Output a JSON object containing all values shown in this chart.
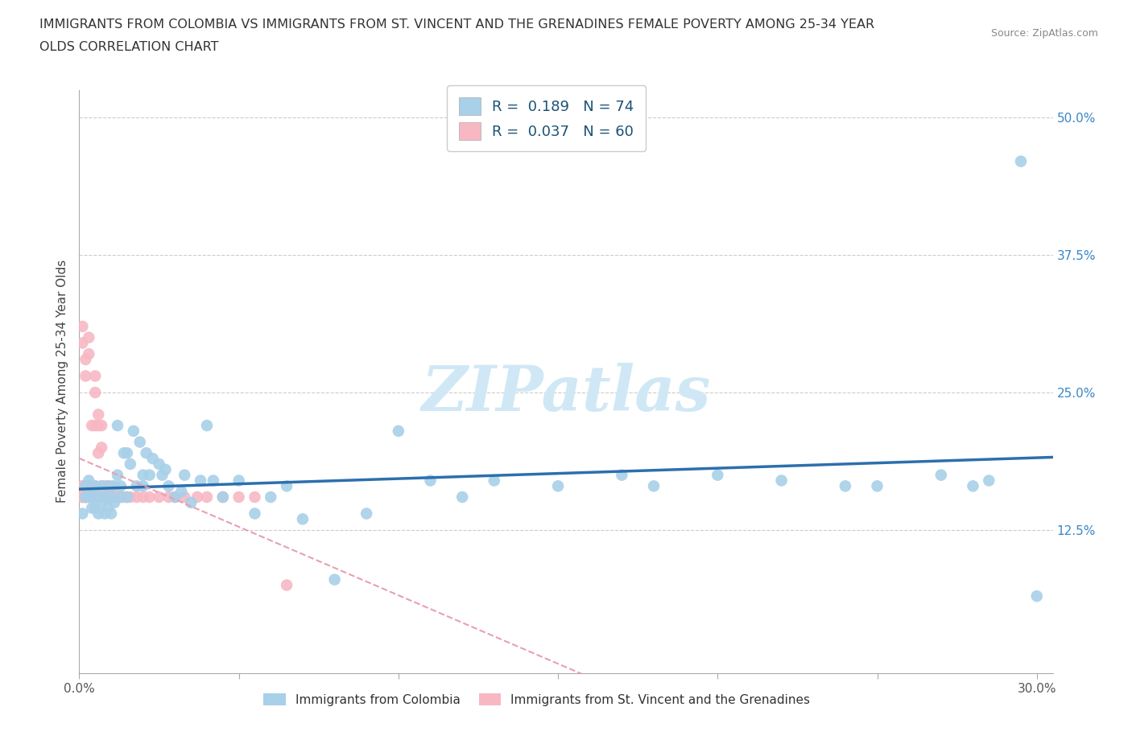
{
  "title_line1": "IMMIGRANTS FROM COLOMBIA VS IMMIGRANTS FROM ST. VINCENT AND THE GRENADINES FEMALE POVERTY AMONG 25-34 YEAR",
  "title_line2": "OLDS CORRELATION CHART",
  "source_text": "Source: ZipAtlas.com",
  "ylabel": "Female Poverty Among 25-34 Year Olds",
  "watermark": "ZIPatlas",
  "colombia_R": 0.189,
  "colombia_N": 74,
  "stvincent_R": 0.037,
  "stvincent_N": 60,
  "colombia_color": "#a8d0e8",
  "stvincent_color": "#f7b8c4",
  "colombia_line_color": "#2c6fad",
  "stvincent_line_color": "#e8a0b0",
  "xlim": [
    0.0,
    0.305
  ],
  "ylim": [
    -0.005,
    0.525
  ],
  "colombia_x": [
    0.001,
    0.002,
    0.002,
    0.003,
    0.003,
    0.004,
    0.004,
    0.004,
    0.005,
    0.005,
    0.005,
    0.006,
    0.006,
    0.007,
    0.007,
    0.008,
    0.008,
    0.009,
    0.009,
    0.01,
    0.01,
    0.011,
    0.011,
    0.012,
    0.012,
    0.013,
    0.013,
    0.014,
    0.015,
    0.015,
    0.016,
    0.017,
    0.018,
    0.019,
    0.02,
    0.02,
    0.021,
    0.022,
    0.023,
    0.025,
    0.026,
    0.027,
    0.028,
    0.03,
    0.032,
    0.033,
    0.035,
    0.038,
    0.04,
    0.042,
    0.045,
    0.05,
    0.055,
    0.06,
    0.065,
    0.07,
    0.08,
    0.09,
    0.1,
    0.11,
    0.12,
    0.13,
    0.15,
    0.17,
    0.18,
    0.2,
    0.22,
    0.24,
    0.25,
    0.27,
    0.28,
    0.285,
    0.295,
    0.3
  ],
  "colombia_y": [
    0.14,
    0.155,
    0.165,
    0.155,
    0.17,
    0.145,
    0.155,
    0.165,
    0.145,
    0.155,
    0.165,
    0.14,
    0.155,
    0.15,
    0.165,
    0.14,
    0.155,
    0.145,
    0.165,
    0.14,
    0.155,
    0.15,
    0.165,
    0.22,
    0.175,
    0.155,
    0.165,
    0.195,
    0.155,
    0.195,
    0.185,
    0.215,
    0.165,
    0.205,
    0.175,
    0.165,
    0.195,
    0.175,
    0.19,
    0.185,
    0.175,
    0.18,
    0.165,
    0.155,
    0.16,
    0.175,
    0.15,
    0.17,
    0.22,
    0.17,
    0.155,
    0.17,
    0.14,
    0.155,
    0.165,
    0.135,
    0.08,
    0.14,
    0.215,
    0.17,
    0.155,
    0.17,
    0.165,
    0.175,
    0.165,
    0.175,
    0.17,
    0.165,
    0.165,
    0.175,
    0.165,
    0.17,
    0.46,
    0.065
  ],
  "stvincent_x": [
    0.001,
    0.001,
    0.001,
    0.001,
    0.001,
    0.002,
    0.002,
    0.002,
    0.002,
    0.003,
    0.003,
    0.003,
    0.003,
    0.003,
    0.004,
    0.004,
    0.004,
    0.004,
    0.004,
    0.005,
    0.005,
    0.005,
    0.005,
    0.005,
    0.006,
    0.006,
    0.006,
    0.006,
    0.007,
    0.007,
    0.007,
    0.007,
    0.008,
    0.008,
    0.008,
    0.009,
    0.009,
    0.009,
    0.01,
    0.01,
    0.011,
    0.011,
    0.012,
    0.013,
    0.014,
    0.015,
    0.016,
    0.018,
    0.02,
    0.022,
    0.025,
    0.028,
    0.03,
    0.033,
    0.037,
    0.04,
    0.045,
    0.05,
    0.055,
    0.065
  ],
  "stvincent_y": [
    0.155,
    0.155,
    0.165,
    0.165,
    0.155,
    0.155,
    0.155,
    0.165,
    0.155,
    0.155,
    0.165,
    0.165,
    0.155,
    0.165,
    0.155,
    0.165,
    0.155,
    0.165,
    0.155,
    0.155,
    0.165,
    0.22,
    0.155,
    0.265,
    0.155,
    0.22,
    0.155,
    0.195,
    0.155,
    0.22,
    0.155,
    0.165,
    0.155,
    0.165,
    0.155,
    0.155,
    0.165,
    0.155,
    0.155,
    0.165,
    0.155,
    0.155,
    0.155,
    0.155,
    0.155,
    0.155,
    0.155,
    0.155,
    0.155,
    0.155,
    0.155,
    0.155,
    0.155,
    0.155,
    0.155,
    0.155,
    0.155,
    0.155,
    0.155,
    0.075
  ],
  "stvincent_y_extra": [
    0.31,
    0.295,
    0.28,
    0.265,
    0.285,
    0.3,
    0.22,
    0.25,
    0.23,
    0.2
  ]
}
